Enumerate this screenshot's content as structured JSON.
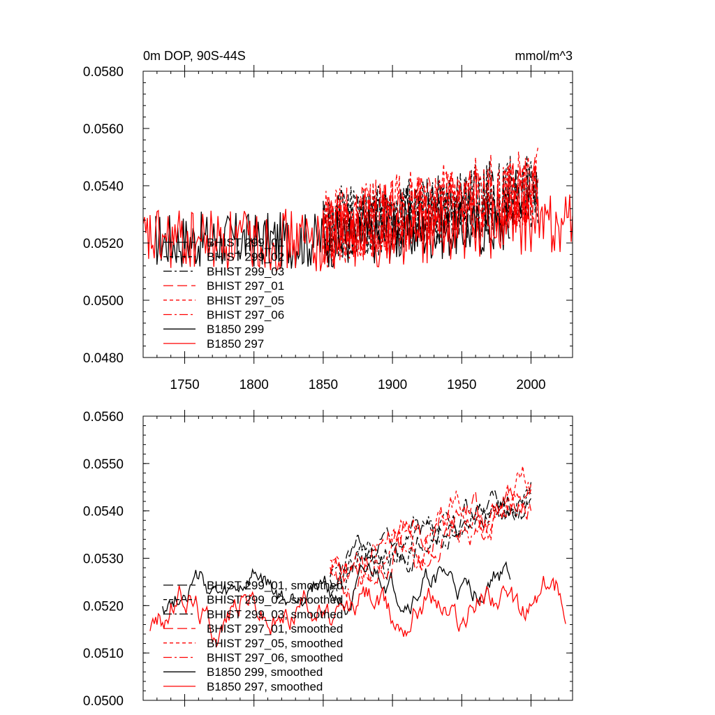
{
  "colors": {
    "black": "#000000",
    "red": "#ff0000"
  },
  "chart_data": [
    {
      "type": "line",
      "title_left": "0m DOP, 90S-44S",
      "title_right": "mmol/m^3",
      "xlim": [
        1720,
        2030
      ],
      "ylim": [
        0.048,
        0.058
      ],
      "xticks": [
        1750,
        1800,
        1850,
        1900,
        1950,
        2000
      ],
      "yticks": [
        "0.0480",
        "0.0500",
        "0.0520",
        "0.0540",
        "0.0560",
        "0.0580"
      ],
      "ytick_values": [
        0.048,
        0.05,
        0.052,
        0.054,
        0.056,
        0.058
      ],
      "show_xtick_labels": true,
      "legend_position": "lower-left",
      "series": [
        {
          "name": "BHIST 299_01",
          "color": "#000000",
          "dash": "long",
          "x_range": [
            1850,
            2005
          ],
          "mean": 0.0525,
          "trend": 0.0013,
          "amp": 0.0012,
          "seed": 11,
          "rough": true
        },
        {
          "name": "BHIST 299_02",
          "color": "#000000",
          "dash": "short",
          "x_range": [
            1850,
            2005
          ],
          "mean": 0.0526,
          "trend": 0.0014,
          "amp": 0.0013,
          "seed": 12,
          "rough": true
        },
        {
          "name": "BHIST 299_03",
          "color": "#000000",
          "dash": "dashdot",
          "x_range": [
            1850,
            2005
          ],
          "mean": 0.0524,
          "trend": 0.0014,
          "amp": 0.0012,
          "seed": 13,
          "rough": true
        },
        {
          "name": "BHIST 297_01",
          "color": "#ff0000",
          "dash": "long",
          "x_range": [
            1850,
            2005
          ],
          "mean": 0.0524,
          "trend": 0.0015,
          "amp": 0.0013,
          "seed": 14,
          "rough": true
        },
        {
          "name": "BHIST 297_05",
          "color": "#ff0000",
          "dash": "short",
          "x_range": [
            1850,
            2005
          ],
          "mean": 0.0525,
          "trend": 0.0016,
          "amp": 0.0014,
          "seed": 15,
          "rough": true
        },
        {
          "name": "BHIST 297_06",
          "color": "#ff0000",
          "dash": "dashdot",
          "x_range": [
            1850,
            2005
          ],
          "mean": 0.0524,
          "trend": 0.0015,
          "amp": 0.0013,
          "seed": 16,
          "rough": true
        },
        {
          "name": "B1850 299",
          "color": "#000000",
          "dash": "solid",
          "x_range": [
            1729,
            1985
          ],
          "mean": 0.0521,
          "trend": 0.0006,
          "amp": 0.001,
          "seed": 17,
          "rough": true
        },
        {
          "name": "B1850 297",
          "color": "#ff0000",
          "dash": "solid",
          "x_range": [
            1720,
            2030
          ],
          "mean": 0.0521,
          "trend": 0.0006,
          "amp": 0.0011,
          "seed": 18,
          "rough": true
        }
      ]
    },
    {
      "type": "line",
      "title_left": "",
      "title_right": "",
      "xlim": [
        1720,
        2030
      ],
      "ylim": [
        0.05,
        0.056
      ],
      "xticks": [
        1750,
        1800,
        1850,
        1900,
        1950,
        2000
      ],
      "yticks": [
        "0.0500",
        "0.0510",
        "0.0520",
        "0.0530",
        "0.0540",
        "0.0550",
        "0.0560"
      ],
      "ytick_values": [
        0.05,
        0.051,
        0.052,
        0.053,
        0.054,
        0.055,
        0.056
      ],
      "show_xtick_labels": false,
      "legend_position": "lower-left",
      "series": [
        {
          "name": "BHIST 299_01, smoothed",
          "color": "#000000",
          "dash": "long",
          "x_range": [
            1855,
            2000
          ],
          "mean": 0.0526,
          "trend": 0.0018,
          "amp": 0.0004,
          "seed": 21,
          "rough": false
        },
        {
          "name": "BHIST 299_02, smoothed",
          "color": "#000000",
          "dash": "short",
          "x_range": [
            1855,
            2000
          ],
          "mean": 0.0527,
          "trend": 0.0017,
          "amp": 0.0004,
          "seed": 22,
          "rough": false
        },
        {
          "name": "BHIST 299_03, smoothed",
          "color": "#000000",
          "dash": "dashdot",
          "x_range": [
            1855,
            2000
          ],
          "mean": 0.0526,
          "trend": 0.0018,
          "amp": 0.0004,
          "seed": 23,
          "rough": false
        },
        {
          "name": "BHIST 297_01, smoothed",
          "color": "#ff0000",
          "dash": "long",
          "x_range": [
            1855,
            2000
          ],
          "mean": 0.0525,
          "trend": 0.0019,
          "amp": 0.0005,
          "seed": 24,
          "rough": false
        },
        {
          "name": "BHIST 297_05, smoothed",
          "color": "#ff0000",
          "dash": "short",
          "x_range": [
            1855,
            2000
          ],
          "mean": 0.0526,
          "trend": 0.002,
          "amp": 0.0005,
          "seed": 25,
          "rough": false
        },
        {
          "name": "BHIST 297_06, smoothed",
          "color": "#ff0000",
          "dash": "dashdot",
          "x_range": [
            1855,
            2000
          ],
          "mean": 0.0525,
          "trend": 0.0019,
          "amp": 0.0005,
          "seed": 26,
          "rough": false
        },
        {
          "name": "B1850 299, smoothed",
          "color": "#000000",
          "dash": "solid",
          "x_range": [
            1734,
            1985
          ],
          "mean": 0.0523,
          "trend": 0.0002,
          "amp": 0.0004,
          "seed": 27,
          "rough": false
        },
        {
          "name": "B1850 297, smoothed",
          "color": "#ff0000",
          "dash": "solid",
          "x_range": [
            1725,
            2025
          ],
          "mean": 0.0519,
          "trend": 0.0002,
          "amp": 0.0005,
          "seed": 28,
          "rough": false
        }
      ]
    }
  ]
}
